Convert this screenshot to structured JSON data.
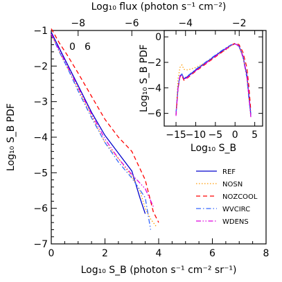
{
  "chart_data": [
    {
      "id": "main",
      "type": "line",
      "xlabel": "Log₁₀ S_B (photon s⁻¹ cm⁻² sr⁻¹)",
      "ylabel": "Log₁₀ S_B PDF",
      "top_xlabel": "Log₁₀ flux (photon s⁻¹ cm⁻²)",
      "xlim": [
        0,
        8
      ],
      "ylim": [
        -7,
        -1
      ],
      "xticks": [
        0,
        2,
        4,
        6,
        8
      ],
      "yticks": [
        -7,
        -6,
        -5,
        -4,
        -3,
        -2,
        -1
      ],
      "top_xlim": [
        -9,
        -1
      ],
      "top_xticks": [
        -8,
        -6,
        -4,
        -2
      ],
      "annotations": [
        "0",
        "6"
      ],
      "legend_position": "lower-right",
      "series": [
        {
          "name": "REF",
          "color": "#0000cc",
          "dash": "solid",
          "x": [
            0,
            0.3,
            0.6,
            1.0,
            1.5,
            2.0,
            2.5,
            3.0,
            3.3,
            3.5
          ],
          "y": [
            -1.05,
            -1.5,
            -1.95,
            -2.55,
            -3.3,
            -3.95,
            -4.45,
            -4.95,
            -5.7,
            -6.15
          ]
        },
        {
          "name": "NOSN",
          "color": "#ff9900",
          "dash": "dotted",
          "x": [
            0,
            0.3,
            0.6,
            1.0,
            1.5,
            2.0,
            2.5,
            3.0,
            3.3,
            3.5,
            3.7,
            3.9
          ],
          "y": [
            -1.1,
            -1.6,
            -2.05,
            -2.65,
            -3.4,
            -4.15,
            -4.6,
            -5.1,
            -5.5,
            -6.0,
            -6.3,
            -6.5
          ]
        },
        {
          "name": "NOZCOOL",
          "color": "#ff0000",
          "dash": "dashed",
          "x": [
            0,
            0.3,
            0.6,
            1.0,
            1.5,
            2.0,
            2.5,
            3.0,
            3.5,
            3.8,
            4.0
          ],
          "y": [
            -0.95,
            -1.35,
            -1.7,
            -2.2,
            -2.85,
            -3.5,
            -4.0,
            -4.4,
            -5.2,
            -6.1,
            -6.4
          ]
        },
        {
          "name": "WVCIRC",
          "color": "#3366ff",
          "dash": "dashdot",
          "x": [
            0,
            0.3,
            0.6,
            1.0,
            1.5,
            2.0,
            2.5,
            3.0,
            3.5,
            3.7
          ],
          "y": [
            -1.1,
            -1.6,
            -2.05,
            -2.7,
            -3.45,
            -4.15,
            -4.7,
            -5.15,
            -5.7,
            -6.6
          ]
        },
        {
          "name": "WDENS",
          "color": "#dd00dd",
          "dash": "dashdotdot",
          "x": [
            0,
            0.3,
            0.6,
            1.0,
            1.5,
            2.0,
            2.5,
            3.0,
            3.5,
            3.8
          ],
          "y": [
            -1.1,
            -1.55,
            -2.0,
            -2.6,
            -3.35,
            -4.05,
            -4.6,
            -5.05,
            -5.45,
            -5.95
          ]
        }
      ]
    },
    {
      "id": "inset",
      "type": "line",
      "xlabel": "Log₁₀ S_B",
      "ylabel": "Log₁₀ S_B PDF",
      "xlim": [
        -18,
        7
      ],
      "ylim": [
        -7,
        0.5
      ],
      "xticks": [
        -15,
        -10,
        -5,
        0,
        5
      ],
      "yticks": [
        -6,
        -4,
        -2,
        0
      ],
      "series": [
        {
          "name": "REF",
          "color": "#0000cc",
          "dash": "solid",
          "x": [
            -15,
            -14.5,
            -14,
            -13.5,
            -13,
            -12,
            -10,
            -8,
            -6,
            -4,
            -2,
            -1,
            0,
            1,
            2,
            3,
            3.5,
            4
          ],
          "y": [
            -6.1,
            -4.0,
            -3.05,
            -2.95,
            -3.3,
            -3.1,
            -2.6,
            -2.15,
            -1.7,
            -1.25,
            -0.85,
            -0.65,
            -0.55,
            -0.7,
            -1.5,
            -3.0,
            -4.5,
            -6.1
          ]
        },
        {
          "name": "NOSN",
          "color": "#ff9900",
          "dash": "dotted",
          "x": [
            -15,
            -14.5,
            -14,
            -13.5,
            -13,
            -12,
            -10,
            -8,
            -6,
            -4,
            -2,
            -1,
            0,
            1,
            2,
            3,
            3.5,
            4
          ],
          "y": [
            -6.1,
            -3.3,
            -2.4,
            -2.2,
            -2.55,
            -2.6,
            -2.4,
            -2.1,
            -1.75,
            -1.35,
            -0.95,
            -0.7,
            -0.55,
            -0.75,
            -1.6,
            -3.2,
            -4.8,
            -6.3
          ]
        },
        {
          "name": "NOZCOOL",
          "color": "#ff0000",
          "dash": "dashed",
          "x": [
            -15,
            -14.5,
            -14,
            -13.5,
            -13,
            -12,
            -10,
            -8,
            -6,
            -4,
            -2,
            -1,
            0,
            1,
            2,
            3,
            3.5,
            4
          ],
          "y": [
            -6.1,
            -4.1,
            -3.15,
            -3.05,
            -3.4,
            -3.2,
            -2.7,
            -2.25,
            -1.8,
            -1.35,
            -0.9,
            -0.65,
            -0.5,
            -0.6,
            -1.2,
            -2.4,
            -3.8,
            -5.8
          ]
        },
        {
          "name": "WVCIRC",
          "color": "#3366ff",
          "dash": "dashdot",
          "x": [
            -15,
            -14.5,
            -14,
            -13.5,
            -13,
            -12,
            -10,
            -8,
            -6,
            -4,
            -2,
            -1,
            0,
            1,
            2,
            3,
            3.5,
            4
          ],
          "y": [
            -6.0,
            -4.0,
            -3.0,
            -2.9,
            -3.25,
            -3.05,
            -2.55,
            -2.1,
            -1.65,
            -1.2,
            -0.8,
            -0.62,
            -0.55,
            -0.75,
            -1.6,
            -3.2,
            -4.8,
            -6.2
          ]
        },
        {
          "name": "WDENS",
          "color": "#dd00dd",
          "dash": "dashdotdot",
          "x": [
            -15,
            -14.5,
            -14,
            -13.5,
            -13,
            -12,
            -10,
            -8,
            -6,
            -4,
            -2,
            -1,
            0,
            1,
            2,
            3,
            3.5,
            4
          ],
          "y": [
            -6.2,
            -4.1,
            -3.1,
            -3.0,
            -3.35,
            -3.15,
            -2.65,
            -2.2,
            -1.75,
            -1.3,
            -0.88,
            -0.66,
            -0.55,
            -0.72,
            -1.55,
            -3.1,
            -4.6,
            -6.3
          ]
        }
      ]
    }
  ]
}
